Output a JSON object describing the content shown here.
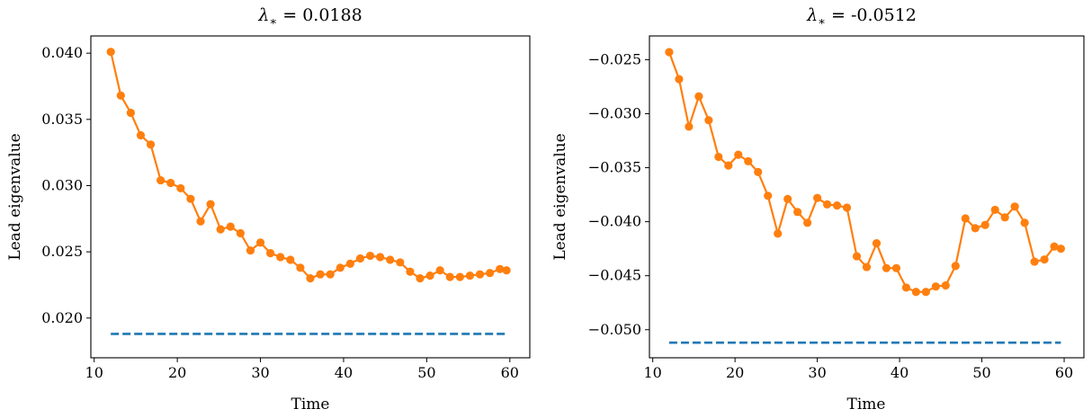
{
  "chart_data": [
    {
      "type": "line",
      "title": "λ* = 0.0188",
      "xlabel": "Time",
      "ylabel": "Lead eigenvalue",
      "xlim": [
        9.6,
        62.4
      ],
      "ylim": [
        0.017,
        0.0413
      ],
      "xticks": [
        10,
        20,
        30,
        40,
        50,
        60
      ],
      "yticks": [
        0.02,
        0.025,
        0.03,
        0.035,
        0.04
      ],
      "ytick_labels": [
        "0.020",
        "0.025",
        "0.030",
        "0.035",
        "0.040"
      ],
      "grid": false,
      "series": [
        {
          "style": "solid-markers",
          "color": "#ff7f0e",
          "x": [
            12.0,
            13.2,
            14.4,
            15.6,
            16.8,
            18.0,
            19.2,
            20.4,
            21.6,
            22.8,
            24.0,
            25.2,
            26.4,
            27.6,
            28.8,
            30.0,
            31.2,
            32.4,
            33.6,
            34.8,
            36.0,
            37.2,
            38.4,
            39.6,
            40.8,
            42.0,
            43.2,
            44.4,
            45.6,
            46.8,
            48.0,
            49.2,
            50.4,
            51.6,
            52.8,
            54.0,
            55.2,
            56.4,
            57.6,
            58.8,
            59.6
          ],
          "y": [
            0.0401,
            0.0368,
            0.0355,
            0.0338,
            0.0331,
            0.0304,
            0.0302,
            0.0298,
            0.029,
            0.0273,
            0.0286,
            0.0267,
            0.0269,
            0.0264,
            0.0251,
            0.0257,
            0.0249,
            0.0246,
            0.0244,
            0.0238,
            0.023,
            0.0233,
            0.0233,
            0.0238,
            0.0241,
            0.0245,
            0.0247,
            0.0246,
            0.0244,
            0.0242,
            0.0235,
            0.023,
            0.0232,
            0.0236,
            0.0231,
            0.0231,
            0.0232,
            0.0233,
            0.0234,
            0.0237,
            0.0236
          ]
        },
        {
          "style": "dashed",
          "color": "#1f77b4",
          "x": [
            12.0,
            59.6
          ],
          "y": [
            0.0188,
            0.0188
          ]
        }
      ]
    },
    {
      "type": "line",
      "title": "λ* = -0.0512",
      "xlabel": "Time",
      "ylabel": "Lead eigenvalue",
      "xlim": [
        9.6,
        62.4
      ],
      "ylim": [
        -0.0526,
        -0.0228
      ],
      "xticks": [
        10,
        20,
        30,
        40,
        50,
        60
      ],
      "yticks": [
        -0.05,
        -0.045,
        -0.04,
        -0.035,
        -0.03,
        -0.025
      ],
      "ytick_labels": [
        "−0.050",
        "−0.045",
        "−0.040",
        "−0.035",
        "−0.030",
        "−0.025"
      ],
      "grid": false,
      "series": [
        {
          "style": "solid-markers",
          "color": "#ff7f0e",
          "x": [
            12.0,
            13.2,
            14.4,
            15.6,
            16.8,
            18.0,
            19.2,
            20.4,
            21.6,
            22.8,
            24.0,
            25.2,
            26.4,
            27.6,
            28.8,
            30.0,
            31.2,
            32.4,
            33.6,
            34.8,
            36.0,
            37.2,
            38.4,
            39.6,
            40.8,
            42.0,
            43.2,
            44.4,
            45.6,
            46.8,
            48.0,
            49.2,
            50.4,
            51.6,
            52.8,
            54.0,
            55.2,
            56.4,
            57.6,
            58.8,
            59.6
          ],
          "y": [
            -0.0243,
            -0.0268,
            -0.0312,
            -0.0284,
            -0.0306,
            -0.034,
            -0.0348,
            -0.0338,
            -0.0344,
            -0.0354,
            -0.0376,
            -0.0411,
            -0.0379,
            -0.0391,
            -0.0401,
            -0.0378,
            -0.0384,
            -0.0385,
            -0.0387,
            -0.0432,
            -0.0442,
            -0.042,
            -0.0443,
            -0.0443,
            -0.0461,
            -0.0465,
            -0.0465,
            -0.046,
            -0.0459,
            -0.0441,
            -0.0397,
            -0.0406,
            -0.0403,
            -0.0389,
            -0.0396,
            -0.0386,
            -0.0401,
            -0.0437,
            -0.0435,
            -0.0423,
            -0.0425
          ]
        },
        {
          "style": "dashed",
          "color": "#1f77b4",
          "x": [
            12.0,
            59.6
          ],
          "y": [
            -0.0512,
            -0.0512
          ]
        }
      ]
    }
  ]
}
